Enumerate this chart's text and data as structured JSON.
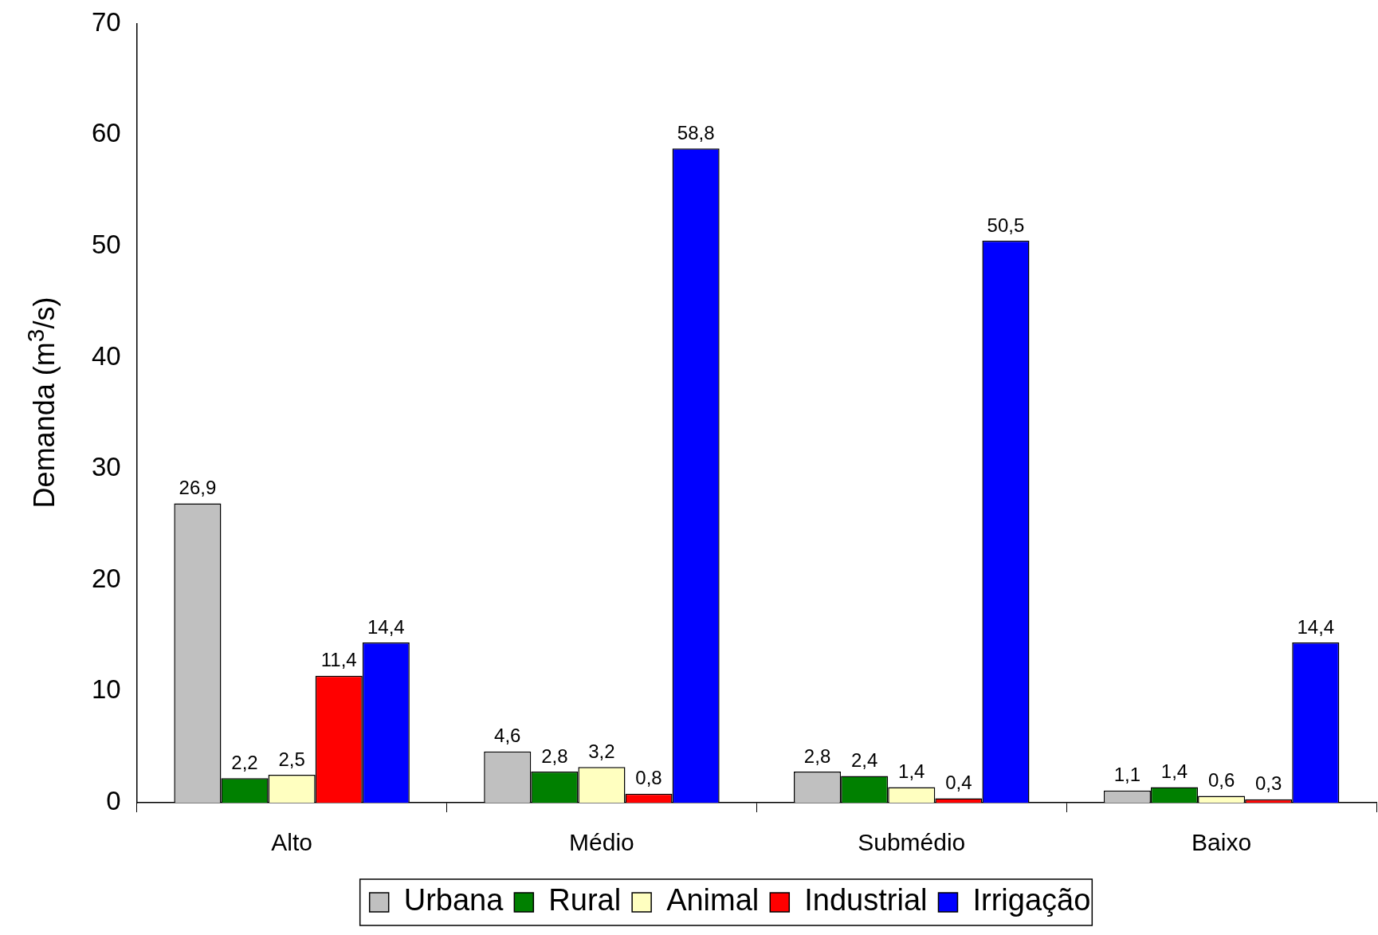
{
  "chart_data": {
    "type": "bar",
    "ylabel": "Demanda (m$^{3}$/s)",
    "categories": [
      "Alto",
      "Médio",
      "Submédio",
      "Baixo"
    ],
    "series": [
      {
        "name": "Urbana",
        "color": "#c0c0c0",
        "values": [
          26.9,
          4.6,
          2.8,
          1.1
        ],
        "value_labels": [
          "26,9",
          "4,6",
          "2,8",
          "1,1"
        ]
      },
      {
        "name": "Rural",
        "color": "#008000",
        "values": [
          2.2,
          2.8,
          2.4,
          1.4
        ],
        "value_labels": [
          "2,2",
          "2,8",
          "2,4",
          "1,4"
        ]
      },
      {
        "name": "Animal",
        "color": "#ffffc0",
        "values": [
          2.5,
          3.2,
          1.4,
          0.6
        ],
        "value_labels": [
          "2,5",
          "3,2",
          "1,4",
          "0,6"
        ]
      },
      {
        "name": "Industrial",
        "color": "#ff0000",
        "values": [
          11.4,
          0.8,
          0.4,
          0.3
        ],
        "value_labels": [
          "11,4",
          "0,8",
          "0,4",
          "0,3"
        ]
      },
      {
        "name": "Irrigação",
        "color": "#0000ff",
        "values": [
          14.4,
          58.8,
          50.5,
          14.4
        ],
        "value_labels": [
          "14,4",
          "58,8",
          "50,5",
          "14,4"
        ]
      }
    ],
    "ylim": [
      0,
      70
    ],
    "yticks": [
      0,
      10,
      20,
      30,
      40,
      50,
      60,
      70
    ],
    "legend": "bottom"
  }
}
